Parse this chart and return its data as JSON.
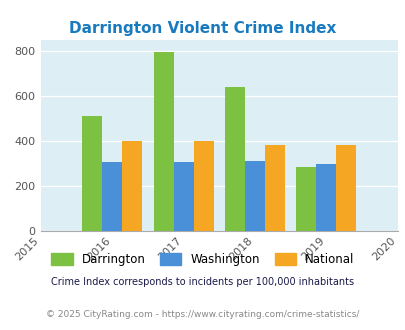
{
  "title": "Darrington Violent Crime Index",
  "years": [
    2016,
    2017,
    2018,
    2019
  ],
  "darrington": [
    510,
    795,
    640,
    283
  ],
  "washington": [
    305,
    305,
    310,
    298
  ],
  "national": [
    398,
    398,
    381,
    381
  ],
  "darrington_color": "#7dc142",
  "washington_color": "#4a90d9",
  "national_color": "#f5a623",
  "bg_color": "#ddeef4",
  "title_color": "#1a7abf",
  "xlim": [
    2015,
    2020
  ],
  "ylim": [
    0,
    850
  ],
  "yticks": [
    0,
    200,
    400,
    600,
    800
  ],
  "legend_labels": [
    "Darrington",
    "Washington",
    "National"
  ],
  "footnote1": "Crime Index corresponds to incidents per 100,000 inhabitants",
  "footnote2": "© 2025 CityRating.com - https://www.cityrating.com/crime-statistics/",
  "footnote2_color": "#4a90d9",
  "bar_width": 0.28
}
